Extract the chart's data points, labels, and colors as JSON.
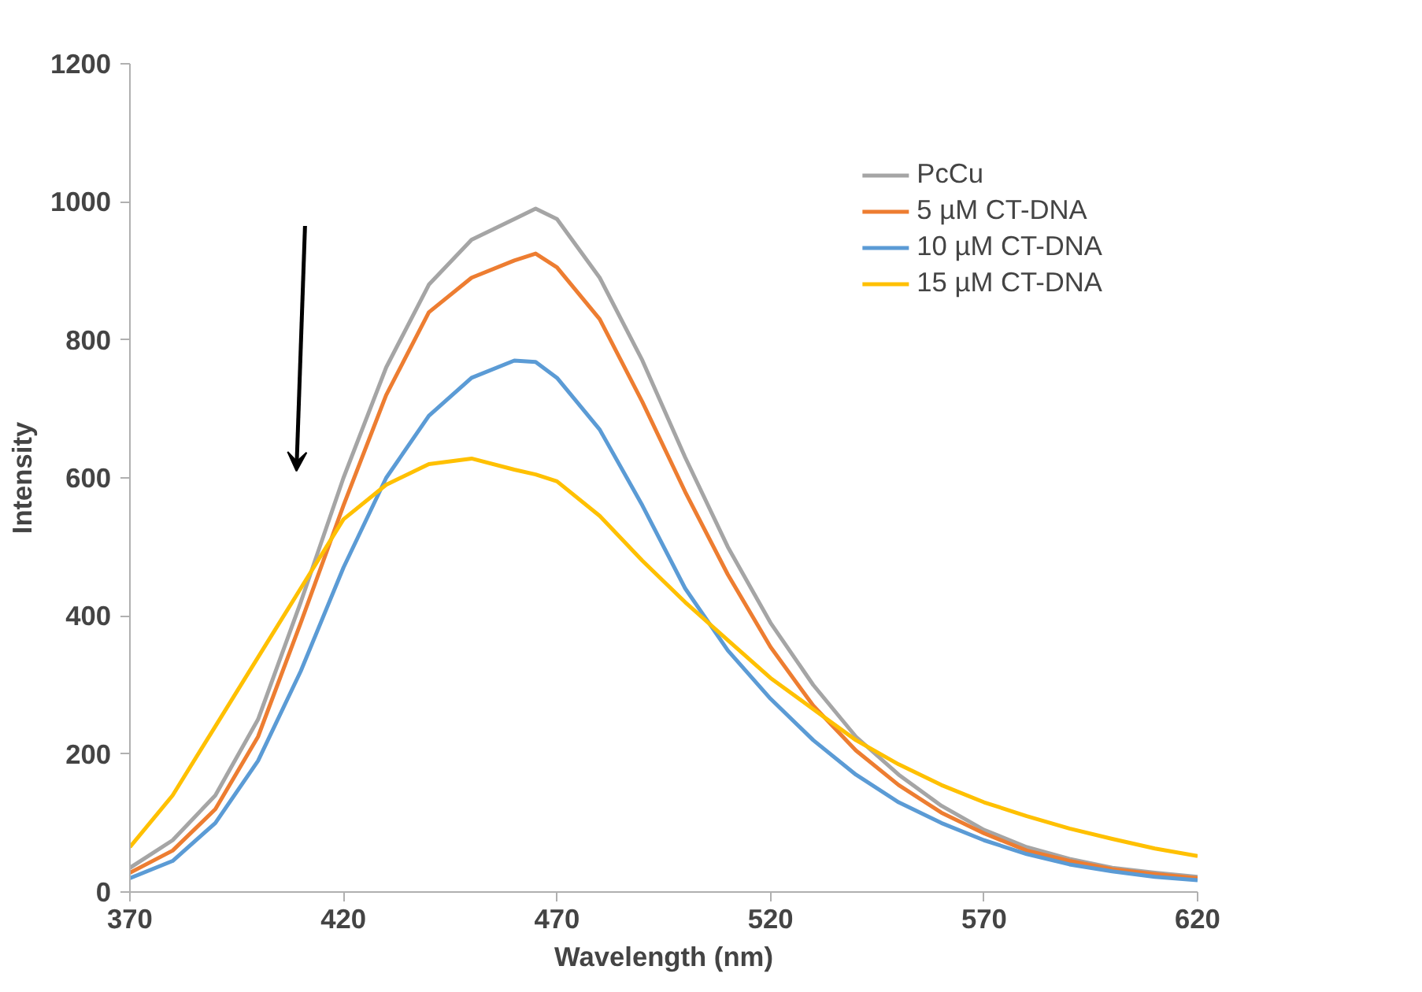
{
  "chart_data": {
    "type": "line",
    "xlabel": "Wavelength (nm)",
    "ylabel": "Intensity",
    "x": [
      370,
      380,
      390,
      400,
      410,
      420,
      430,
      440,
      450,
      460,
      465,
      470,
      480,
      490,
      500,
      510,
      520,
      530,
      540,
      550,
      560,
      570,
      580,
      590,
      600,
      610,
      620
    ],
    "series": [
      {
        "name": "PcCu",
        "color": "#a5a5a5",
        "values": [
          35,
          75,
          140,
          250,
          420,
          600,
          760,
          880,
          945,
          975,
          990,
          975,
          890,
          770,
          630,
          500,
          390,
          300,
          225,
          170,
          125,
          90,
          65,
          48,
          35,
          28,
          22
        ]
      },
      {
        "name": "5 µM CT-DNA",
        "color": "#ed7d31",
        "values": [
          28,
          60,
          120,
          225,
          390,
          560,
          720,
          840,
          890,
          915,
          925,
          905,
          830,
          710,
          580,
          460,
          355,
          270,
          205,
          155,
          115,
          85,
          60,
          45,
          33,
          26,
          20
        ]
      },
      {
        "name": "10 µM CT-DNA",
        "color": "#5b9bd5",
        "values": [
          20,
          45,
          100,
          190,
          320,
          470,
          600,
          690,
          745,
          770,
          768,
          745,
          670,
          560,
          440,
          350,
          280,
          220,
          170,
          130,
          100,
          75,
          55,
          40,
          30,
          22,
          17
        ]
      },
      {
        "name": "15 µM CT-DNA",
        "color": "#ffc000",
        "values": [
          65,
          140,
          240,
          340,
          440,
          540,
          590,
          620,
          628,
          612,
          605,
          595,
          545,
          480,
          420,
          365,
          310,
          265,
          220,
          185,
          155,
          130,
          110,
          92,
          77,
          63,
          52
        ]
      }
    ],
    "xlim": [
      370,
      620
    ],
    "ylim": [
      0,
      1200
    ],
    "xticks": [
      370,
      420,
      470,
      520,
      570,
      620
    ],
    "yticks": [
      0,
      200,
      400,
      600,
      800,
      1000,
      1200
    ],
    "grid": false,
    "legend": "top right",
    "marker": "none",
    "line_style": "solid"
  }
}
